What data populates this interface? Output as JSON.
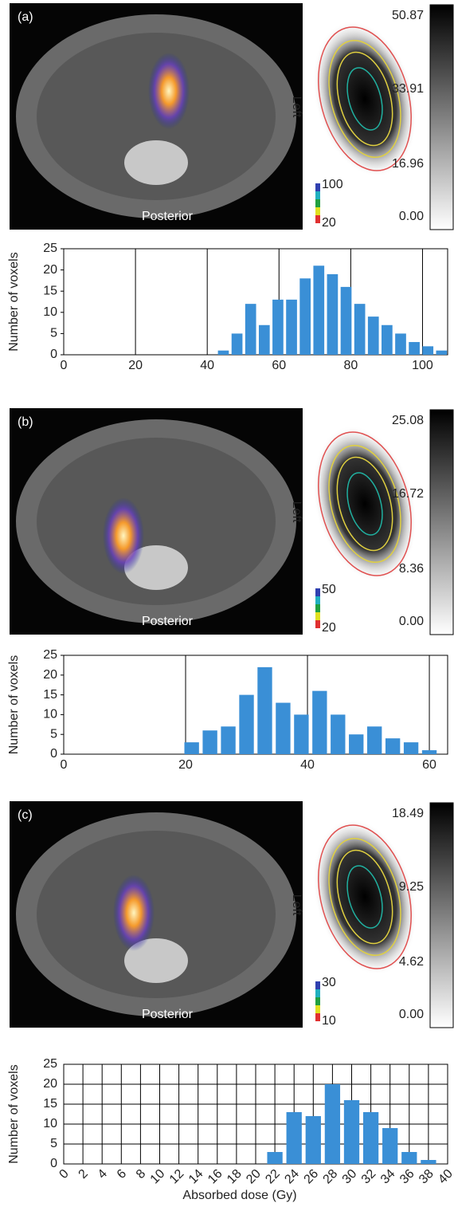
{
  "panels": [
    {
      "label": "(a)",
      "orientation": "Left",
      "view": "Posterior",
      "dose_scale": [
        "50.87",
        "33.91",
        "16.96",
        "0.00"
      ],
      "contour_scale": [
        "100",
        "20"
      ]
    },
    {
      "label": "(b)",
      "orientation": "Left",
      "view": "Posterior",
      "dose_scale": [
        "25.08",
        "16.72",
        "8.36",
        "0.00"
      ],
      "contour_scale": [
        "50",
        "20"
      ]
    },
    {
      "label": "(c)",
      "orientation": "Left",
      "view": "Posterior",
      "dose_scale": [
        "18.49",
        "9.25",
        "4.62",
        "0.00"
      ],
      "contour_scale": [
        "30",
        "10"
      ]
    }
  ],
  "chart_data": [
    {
      "type": "bar",
      "ylabel": "Number of voxels",
      "color": "#3a8fd6",
      "grid": "x",
      "x": [
        44.5,
        48.3,
        52.1,
        55.9,
        59.7,
        63.5,
        67.3,
        71.1,
        74.9,
        78.7,
        82.5,
        86.3,
        90.1,
        93.9,
        97.7,
        101.5,
        105.3
      ],
      "values": [
        1,
        5,
        12,
        7,
        13,
        13,
        18,
        21,
        19,
        16,
        12,
        9,
        7,
        5,
        3,
        2,
        1
      ],
      "xlim": [
        0,
        107
      ],
      "xticks": [
        0,
        20,
        40,
        60,
        80,
        100
      ],
      "ylim": [
        0,
        25
      ],
      "yticks": [
        0,
        5,
        10,
        15,
        20,
        25
      ]
    },
    {
      "type": "bar",
      "ylabel": "Number of voxels",
      "color": "#3a8fd6",
      "grid": "x",
      "x": [
        21,
        24,
        27,
        30,
        33,
        36,
        39,
        42,
        45,
        48,
        51,
        54,
        57,
        60
      ],
      "values": [
        3,
        6,
        7,
        15,
        22,
        13,
        10,
        16,
        10,
        5,
        7,
        4,
        3,
        1
      ],
      "xlim": [
        0,
        63
      ],
      "xticks": [
        0,
        20,
        40,
        60
      ],
      "ylim": [
        0,
        25
      ],
      "yticks": [
        0,
        5,
        10,
        15,
        20,
        25
      ]
    },
    {
      "type": "bar",
      "ylabel": "Number of voxels",
      "xlabel": "Absorbed dose (Gy)",
      "color": "#3a8fd6",
      "grid": "both",
      "x": [
        22,
        24,
        26,
        28,
        30,
        32,
        34,
        36,
        38
      ],
      "values": [
        3,
        13,
        12,
        20,
        16,
        13,
        9,
        3,
        1
      ],
      "xlim": [
        0,
        40
      ],
      "xticks": [
        0,
        2,
        4,
        6,
        8,
        10,
        12,
        14,
        16,
        18,
        20,
        22,
        24,
        26,
        28,
        30,
        32,
        34,
        36,
        38,
        40
      ],
      "ylim": [
        0,
        25
      ],
      "yticks": [
        0,
        5,
        10,
        15,
        20,
        25
      ]
    }
  ]
}
